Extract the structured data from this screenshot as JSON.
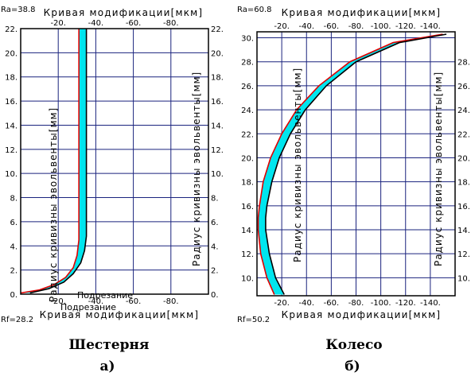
{
  "charts": [
    {
      "label_top_left": "Ra=38.8",
      "label_bottom_left": "Rf=28.2",
      "title_top": "Кривая модификации[мкм]",
      "title_bottom": "Кривая модификации[мкм]",
      "ylabel_left": "Радиус кривизны эвольвенты[мм]",
      "ylabel_right": "Радиус кривизны эвольвенты[мм]",
      "overlay_labels": [
        "Подрезание",
        "Подрезание"
      ],
      "caption": "Шестерня",
      "letter": "а)"
    },
    {
      "label_top_left": "Ra=60.8",
      "label_bottom_left": "Rf=50.2",
      "title_top": "Кривая модификации[мкм]",
      "title_bottom": "Кривая модификации[мкм]",
      "ylabel_left": "Радиус кривизны эвольвенты[мм]",
      "ylabel_right": "Радиус кривизны эвольвенты[мм]",
      "overlay_labels": [],
      "caption": "Колесо",
      "letter": "б)"
    }
  ],
  "colors": {
    "band": "#00e5ee",
    "outer": "#e00000",
    "inner": "#000000",
    "grid": "#1a237e",
    "frame": "#000000"
  },
  "chart_data": [
    {
      "type": "area",
      "xlim": [
        0,
        -100
      ],
      "ylim": [
        0,
        22
      ],
      "x_ticks": [
        "-20.",
        "-40.",
        "-60.",
        "-80."
      ],
      "x_ticks_bottom": [
        "-20.",
        "-40.",
        "-60.",
        "-80."
      ],
      "y_ticks": [
        "0.",
        "2.",
        "4.",
        "6.",
        "8.",
        "10.",
        "12.",
        "14.",
        "16.",
        "18.",
        "20.",
        "22."
      ],
      "y_ticks_right": [
        "0.",
        "2.",
        "4.",
        "6.",
        "8.",
        "10.",
        "12.",
        "14.",
        "16.",
        "18.",
        "20.",
        "22."
      ],
      "series": [
        {
          "points": [
            [
              0,
              0.1
            ],
            [
              -10,
              0.35
            ],
            [
              -18,
              0.8
            ],
            [
              -24,
              1.4
            ],
            [
              -28,
              2.2
            ],
            [
              -30,
              3.2
            ],
            [
              -31,
              4.5
            ],
            [
              -31,
              6
            ],
            [
              -31,
              7
            ],
            [
              -31,
              10
            ],
            [
              -31,
              14
            ],
            [
              -31,
              18
            ],
            [
              -31,
              22
            ]
          ]
        },
        {
          "points": [
            [
              -5,
              0.1
            ],
            [
              -15,
              0.45
            ],
            [
              -23,
              1.0
            ],
            [
              -28,
              1.7
            ],
            [
              -32,
              2.6
            ],
            [
              -34,
              3.6
            ],
            [
              -35,
              4.8
            ],
            [
              -35,
              6
            ],
            [
              -35,
              7.5
            ],
            [
              -35,
              10
            ],
            [
              -35,
              14
            ],
            [
              -35,
              18
            ],
            [
              -35,
              22
            ]
          ]
        }
      ]
    },
    {
      "type": "area",
      "xlim": [
        0,
        -160
      ],
      "ylim": [
        8.5,
        30.5
      ],
      "x_ticks": [
        "-20.",
        "-40.",
        "-60.",
        "-80.",
        "-100.",
        "-120.",
        "-140."
      ],
      "x_ticks_bottom": [
        "-20.",
        "-40.",
        "-60.",
        "-80.",
        "-100.",
        "-120.",
        "-140."
      ],
      "y_ticks": [
        "10.",
        "12.",
        "14.",
        "16.",
        "18.",
        "20.",
        "22.",
        "24.",
        "26.",
        "28.",
        "30."
      ],
      "y_ticks_right": [
        "10.",
        "12.",
        "14.",
        "16.",
        "18.",
        "20.",
        "22.",
        "24.",
        "26.",
        "28."
      ],
      "series": [
        {
          "points": [
            [
              -14,
              8.6
            ],
            [
              -8,
              10
            ],
            [
              -3,
              12
            ],
            [
              -1,
              14
            ],
            [
              -1,
              15
            ],
            [
              -2,
              16
            ],
            [
              -5,
              18
            ],
            [
              -11,
              20
            ],
            [
              -20,
              22
            ],
            [
              -32,
              24
            ],
            [
              -50,
              26
            ],
            [
              -75,
              28
            ],
            [
              -110,
              29.6
            ],
            [
              -150,
              30.3
            ]
          ]
        },
        {
          "points": [
            [
              -22,
              8.6
            ],
            [
              -15,
              10
            ],
            [
              -10,
              12
            ],
            [
              -7,
              14
            ],
            [
              -7,
              15
            ],
            [
              -8,
              16
            ],
            [
              -12,
              18
            ],
            [
              -18,
              20
            ],
            [
              -27,
              22
            ],
            [
              -39,
              24
            ],
            [
              -56,
              26
            ],
            [
              -80,
              28
            ],
            [
              -115,
              29.6
            ],
            [
              -153,
              30.3
            ]
          ]
        }
      ]
    }
  ]
}
